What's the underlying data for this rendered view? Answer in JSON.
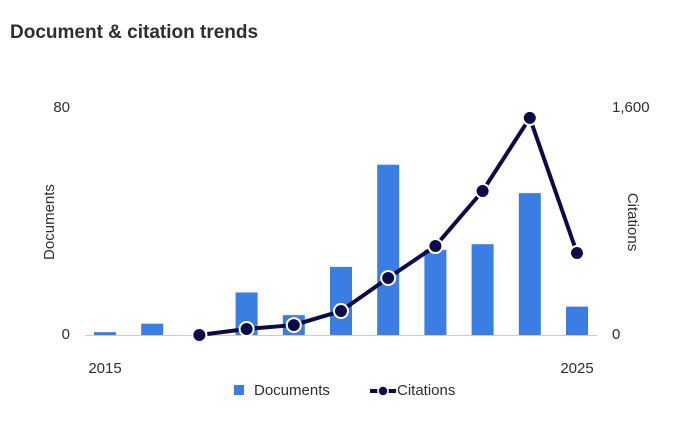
{
  "chart_data": {
    "type": "bar-line",
    "title": "Document & citation trends",
    "categories": [
      "2015",
      null,
      null,
      null,
      null,
      null,
      null,
      null,
      null,
      null,
      "2025"
    ],
    "ylabel": "Documents",
    "y2label": "Citations",
    "ylim": [
      0,
      80
    ],
    "yticks": [
      0,
      80
    ],
    "y2lim": [
      0,
      1600
    ],
    "y2ticks": [
      0,
      {
        "value": 1600,
        "label": "1,600"
      }
    ],
    "series": [
      {
        "name": "Documents",
        "type": "bar",
        "color": "#3a7ee4",
        "values": [
          1,
          4,
          0,
          15,
          7,
          24,
          60,
          30,
          32,
          50,
          10
        ]
      },
      {
        "name": "Citations",
        "type": "line",
        "axis": "y2",
        "color": "#0d0a4a",
        "values": [
          null,
          null,
          0,
          42,
          70,
          169,
          402,
          627,
          1015,
          1530,
          578
        ]
      }
    ]
  }
}
